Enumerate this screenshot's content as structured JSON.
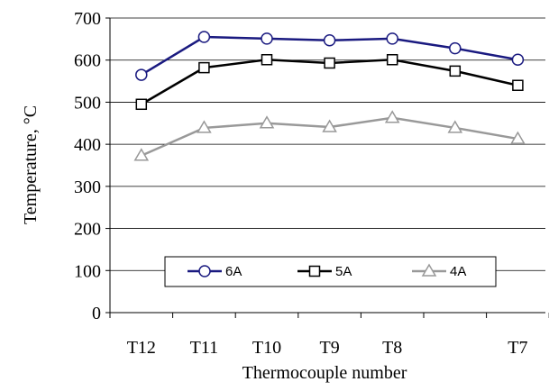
{
  "chart_data": {
    "type": "line",
    "xlabel": "Thermocouple number",
    "ylabel": "Temperature, °C",
    "categories": [
      "T12",
      "T11",
      "T10",
      "T9",
      "T8",
      null,
      "T7"
    ],
    "series": [
      {
        "name": "6A",
        "color": "#1a1a80",
        "marker": "circle",
        "values": [
          565,
          655,
          651,
          647,
          651,
          628,
          601
        ]
      },
      {
        "name": "5A",
        "color": "#000000",
        "marker": "square",
        "values": [
          495,
          582,
          601,
          593,
          601,
          574,
          540
        ]
      },
      {
        "name": "4A",
        "color": "#999999",
        "marker": "triangle",
        "values": [
          373,
          439,
          450,
          441,
          463,
          439,
          413
        ]
      }
    ],
    "ylim": [
      0,
      700
    ],
    "yticks": [
      0,
      100,
      200,
      300,
      400,
      500,
      600,
      700
    ],
    "grid": true
  }
}
